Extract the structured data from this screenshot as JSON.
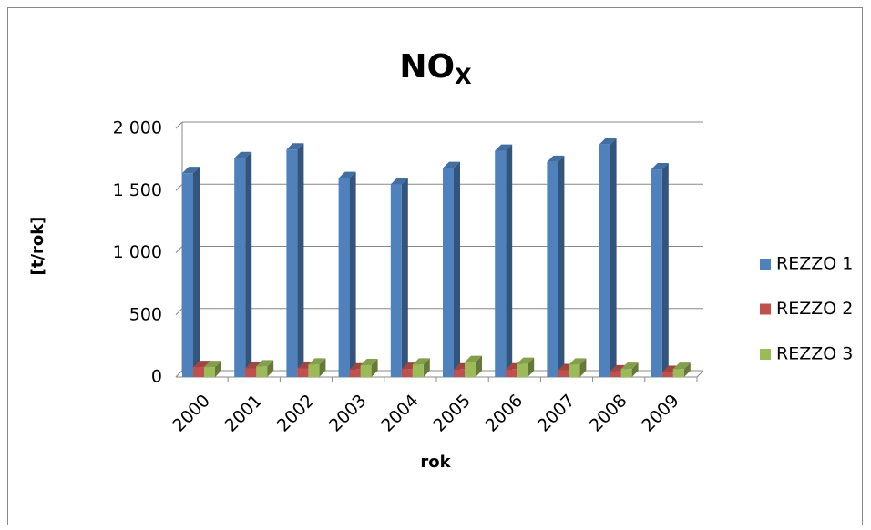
{
  "chart_data": {
    "type": "bar3d",
    "title": "NO",
    "title_subscript": "X",
    "x_label": "rok",
    "y_label": "[t/rok]",
    "categories": [
      "2000",
      "2001",
      "2002",
      "2003",
      "2004",
      "2005",
      "2006",
      "2007",
      "2008",
      "2009"
    ],
    "series": [
      {
        "name": "REZZO 1",
        "color": "#4f81bd",
        "values": [
          1640,
          1760,
          1830,
          1600,
          1550,
          1680,
          1820,
          1730,
          1870,
          1670
        ]
      },
      {
        "name": "REZZO 2",
        "color": "#c0504d",
        "values": [
          80,
          70,
          70,
          60,
          65,
          60,
          60,
          55,
          45,
          40
        ]
      },
      {
        "name": "REZZO 3",
        "color": "#9bbb59",
        "values": [
          80,
          85,
          100,
          95,
          100,
          120,
          105,
          100,
          65,
          65
        ]
      }
    ],
    "ylim": [
      0,
      2000
    ],
    "yticks": [
      0,
      500,
      {
        "value": 1000,
        "label": "1 000"
      },
      {
        "value": 1500,
        "label": "1 500"
      },
      {
        "value": 2000,
        "label": "2 000"
      }
    ],
    "grid": true,
    "legend": "right"
  }
}
